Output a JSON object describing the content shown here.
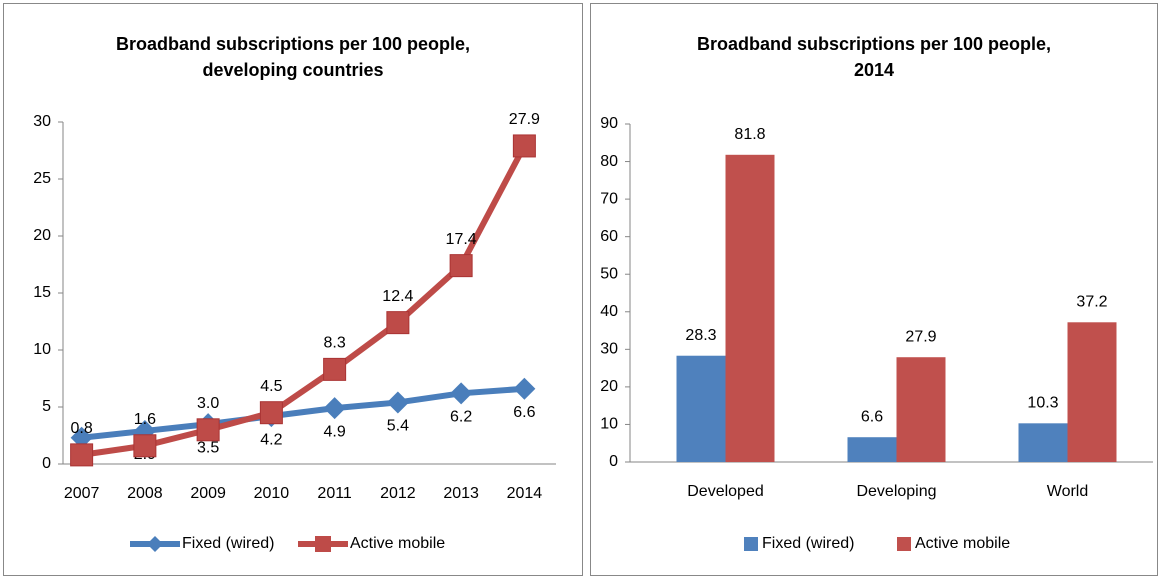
{
  "chart_data": [
    {
      "type": "line",
      "title": "Broadband subscriptions per 100 people, developing countries",
      "categories": [
        "2007",
        "2008",
        "2009",
        "2010",
        "2011",
        "2012",
        "2013",
        "2014"
      ],
      "series": [
        {
          "name": "Fixed (wired)",
          "color": "#4a7ebb",
          "values": [
            2.3,
            2.9,
            3.5,
            4.2,
            4.9,
            5.4,
            6.2,
            6.6
          ],
          "value_labels": [
            "2.3",
            "2.9",
            "3.5",
            "4.2",
            "4.9",
            "5.4",
            "6.2",
            "6.6"
          ]
        },
        {
          "name": "Active mobile",
          "color": "#be4b48",
          "values": [
            0.8,
            1.6,
            3.0,
            4.5,
            8.3,
            12.4,
            17.4,
            27.9
          ],
          "value_labels": [
            "0.8",
            "1.6",
            "3.0",
            "4.5",
            "8.3",
            "12.4",
            "17.4",
            "27.9"
          ]
        }
      ],
      "ylim": [
        0,
        30
      ],
      "yticks": [
        0,
        5,
        10,
        15,
        20,
        25,
        30
      ],
      "legend": "bottom"
    },
    {
      "type": "bar",
      "title": "Broadband subscriptions per 100 people, 2014",
      "categories": [
        "Developed",
        "Developing",
        "World"
      ],
      "series": [
        {
          "name": "Fixed (wired)",
          "color": "#4f81bd",
          "values": [
            28.3,
            6.6,
            10.3
          ]
        },
        {
          "name": "Active mobile",
          "color": "#c0504d",
          "values": [
            81.8,
            27.9,
            37.2
          ]
        }
      ],
      "ylim": [
        0,
        90
      ],
      "yticks": [
        0,
        10,
        20,
        30,
        40,
        50,
        60,
        70,
        80,
        90
      ],
      "legend": "bottom"
    }
  ]
}
